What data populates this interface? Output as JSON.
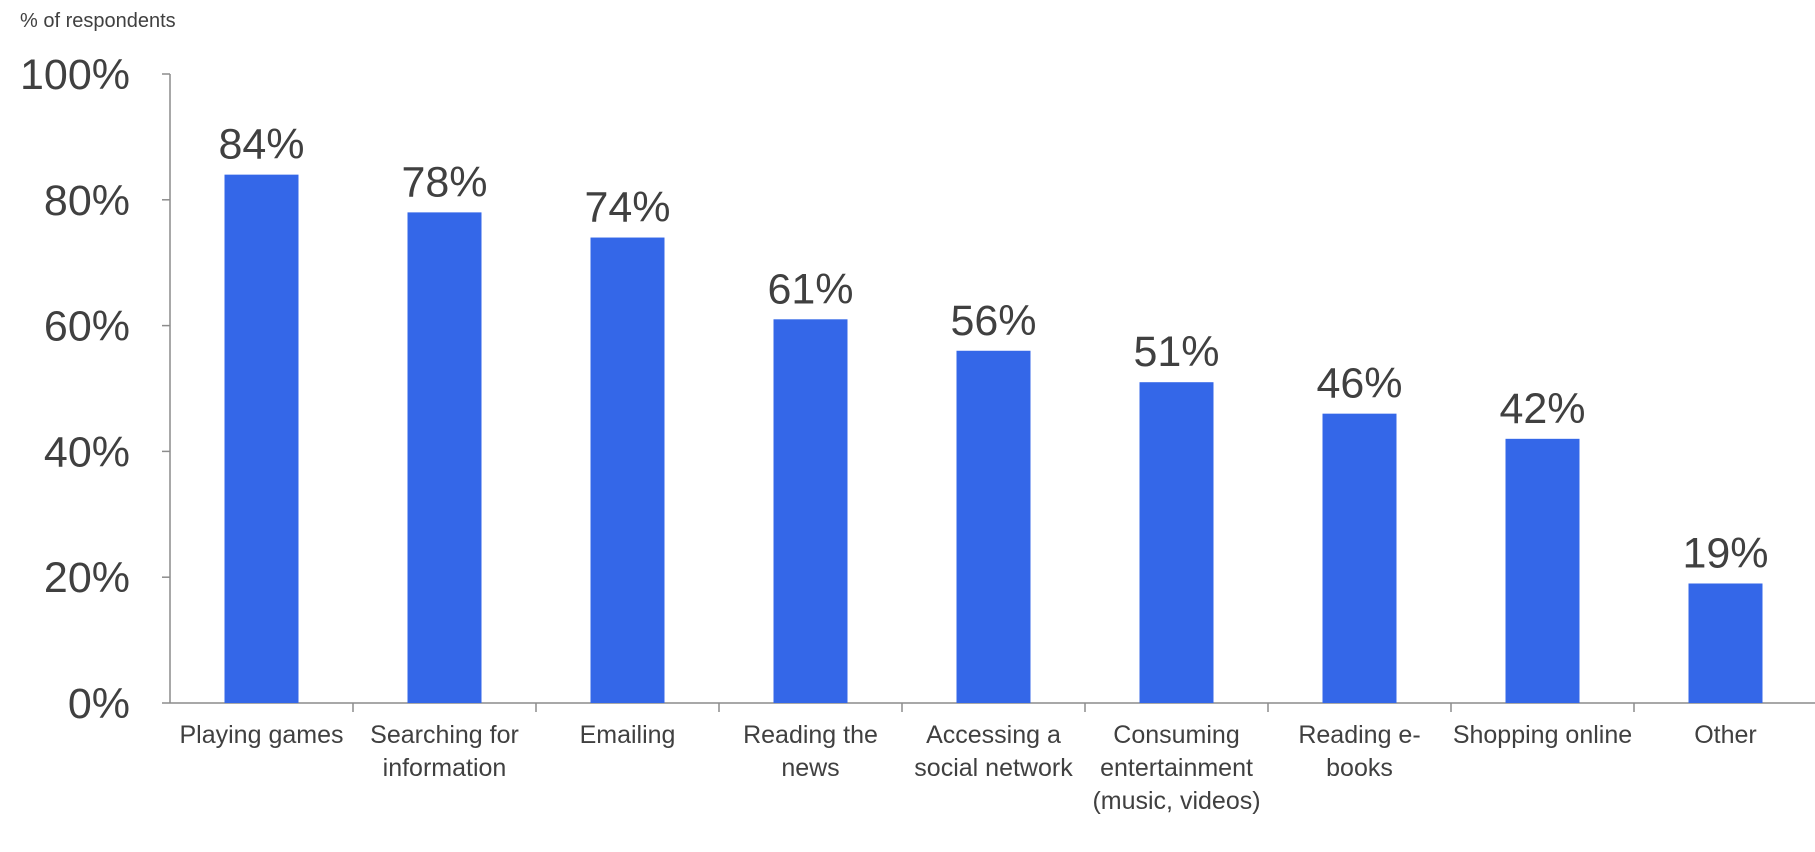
{
  "chart_data": {
    "type": "bar",
    "y_axis_label": "% of respondents",
    "categories": [
      "Playing games",
      "Searching for information",
      "Emailing",
      "Reading the news",
      "Accessing a social network",
      "Consuming entertainment (music, videos)",
      "Reading e-books",
      "Shopping online",
      "Other"
    ],
    "values": [
      84,
      78,
      74,
      61,
      56,
      51,
      46,
      42,
      19
    ],
    "value_labels": [
      "84%",
      "78%",
      "74%",
      "61%",
      "56%",
      "51%",
      "46%",
      "42%",
      "19%"
    ],
    "color": "#3467e8",
    "ylim": [
      0,
      100
    ],
    "yticks": [
      {
        "value": 0,
        "label": "0%"
      },
      {
        "value": 20,
        "label": "20%"
      },
      {
        "value": 40,
        "label": "40%"
      },
      {
        "value": 60,
        "label": "60%"
      },
      {
        "value": 80,
        "label": "80%"
      },
      {
        "value": 100,
        "label": "100%"
      }
    ]
  }
}
